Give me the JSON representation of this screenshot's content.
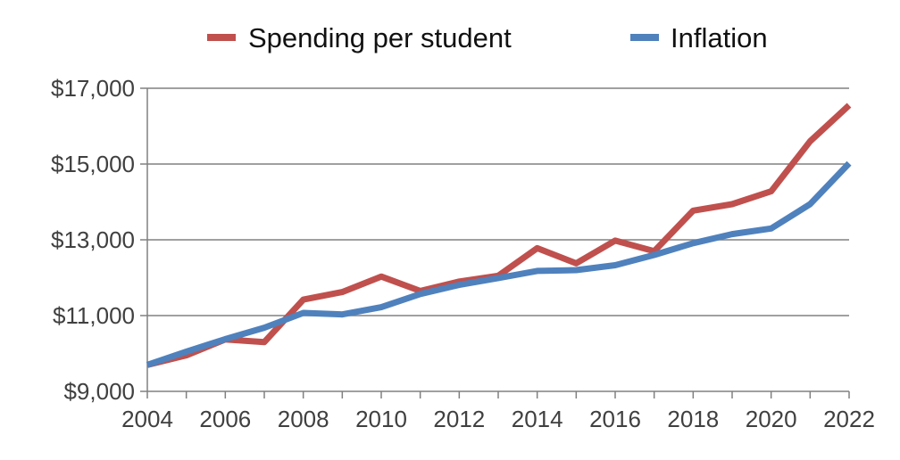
{
  "chart_data": {
    "type": "line",
    "x": [
      2004,
      2005,
      2006,
      2007,
      2008,
      2009,
      2010,
      2011,
      2012,
      2013,
      2014,
      2015,
      2016,
      2017,
      2018,
      2019,
      2020,
      2021,
      2022
    ],
    "x_tick_labels": [
      "2004",
      "2006",
      "2008",
      "2010",
      "2012",
      "2014",
      "2016",
      "2018",
      "2020",
      "2022"
    ],
    "y_tick_labels": [
      "$9,000",
      "$11,000",
      "$13,000",
      "$15,000",
      "$17,000"
    ],
    "ylim": [
      9000,
      17000
    ],
    "xlim": [
      2004,
      2022
    ],
    "grid": "horizontal",
    "legend_position": "top",
    "title": "",
    "xlabel": "",
    "ylabel": "",
    "series": [
      {
        "name": "Spending per student",
        "color": "#c0504d",
        "values": [
          9700,
          9950,
          10370,
          10300,
          11420,
          11620,
          12030,
          11650,
          11900,
          12050,
          12780,
          12380,
          12980,
          12700,
          13770,
          13940,
          14280,
          15600,
          16550
        ]
      },
      {
        "name": "Inflation",
        "color": "#4f81bd",
        "values": [
          9700,
          10050,
          10380,
          10680,
          11070,
          11030,
          11220,
          11570,
          11810,
          11990,
          12180,
          12200,
          12330,
          12600,
          12910,
          13150,
          13300,
          13940,
          15020
        ]
      }
    ],
    "colors": {
      "gridline": "#808080",
      "axis": "#808080",
      "tick_text": "#404040"
    }
  }
}
